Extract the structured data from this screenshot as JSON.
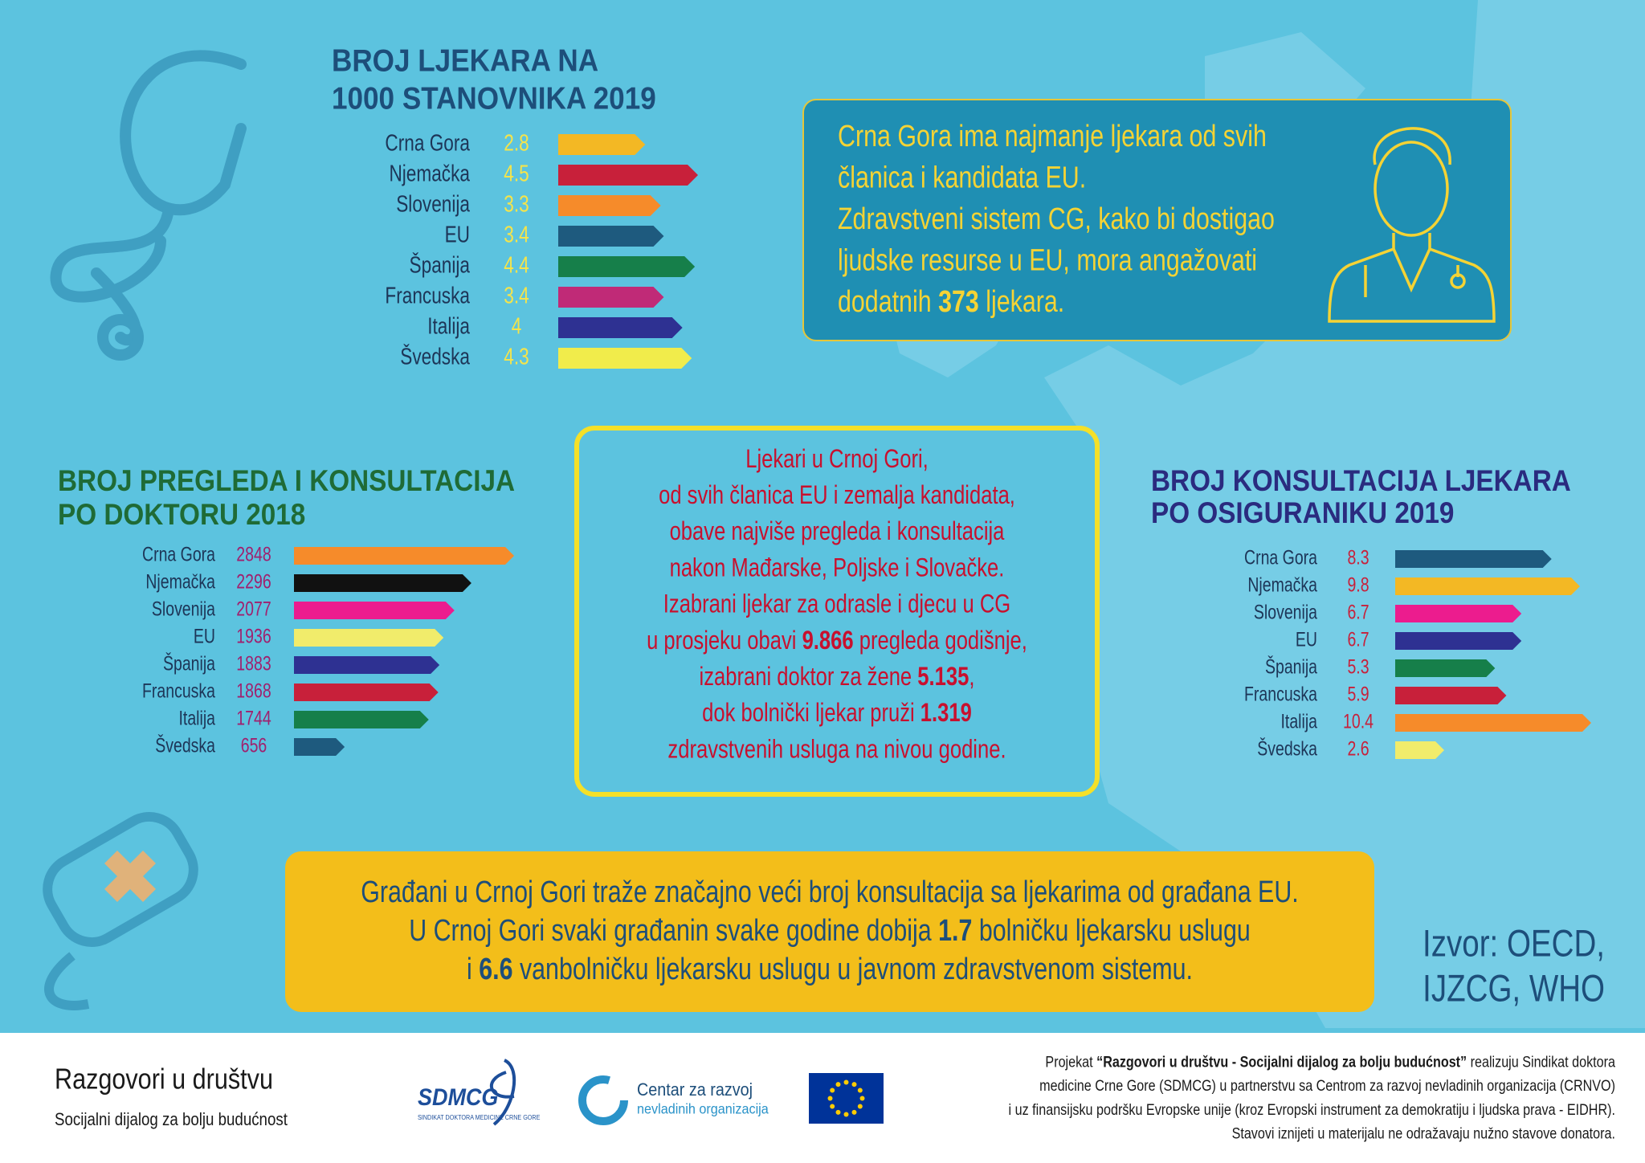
{
  "chart_data": [
    {
      "type": "bar",
      "orientation": "horizontal",
      "title": [
        "BROJ LJEKARA NA",
        "1000 STANOVNIKA 2019"
      ],
      "categories": [
        "Crna Gora",
        "Njemačka",
        "Slovenija",
        "EU",
        "Španija",
        "Francuska",
        "Italija",
        "Švedska"
      ],
      "values": [
        2.8,
        4.5,
        3.3,
        3.4,
        4.4,
        3.4,
        4,
        4.3
      ],
      "colors": [
        "#f3b824",
        "#c8203a",
        "#f68b2a",
        "#1e5a7e",
        "#167f4a",
        "#c02a77",
        "#2e3192",
        "#f1ec4b"
      ]
    },
    {
      "type": "bar",
      "orientation": "horizontal",
      "title": [
        "BROJ PREGLEDA I KONSULTACIJA",
        "PO DOKTORU 2018"
      ],
      "categories": [
        "Crna Gora",
        "Njemačka",
        "Slovenija",
        "EU",
        "Španija",
        "Francuska",
        "Italija",
        "Švedska"
      ],
      "values": [
        2848,
        2296,
        2077,
        1936,
        1883,
        1868,
        1744,
        656
      ],
      "colors": [
        "#f68b2a",
        "#111111",
        "#ec1c8e",
        "#f1ec6b",
        "#2e3192",
        "#c8203a",
        "#167f4a",
        "#1e5a7e"
      ]
    },
    {
      "type": "bar",
      "orientation": "horizontal",
      "title": [
        "BROJ KONSULTACIJA LJEKARA",
        "PO OSIGURANIKU 2019"
      ],
      "categories": [
        "Crna Gora",
        "Njemačka",
        "Slovenija",
        "EU",
        "Španija",
        "Francuska",
        "Italija",
        "Švedska"
      ],
      "values": [
        8.3,
        9.8,
        6.7,
        6.7,
        5.3,
        5.9,
        10.4,
        2.6
      ],
      "colors": [
        "#1e5a7e",
        "#f3b824",
        "#ec1c8e",
        "#2e3192",
        "#167f4a",
        "#c8203a",
        "#f68b2a",
        "#f1ec6b"
      ]
    }
  ],
  "info_box": {
    "lines": [
      [
        "Crna Gora ima najmanje ljekara od svih"
      ],
      [
        "članica i kandidata EU."
      ],
      [
        "Zdravstveni sistem CG, kako bi dostigao"
      ],
      [
        "ljudske resurse u EU, mora angažovati"
      ],
      [
        "dodatnih ",
        {
          "bold": "373"
        },
        " ljekara."
      ]
    ]
  },
  "center_box": {
    "lines": [
      [
        "Ljekari u Crnoj Gori,"
      ],
      [
        "od svih članica EU i zemalja kandidata,"
      ],
      [
        "obave najviše pregleda i konsultacija"
      ],
      [
        "nakon Mađarske, Poljske i Slovačke."
      ],
      [
        "Izabrani ljekar za odrasle i djecu u CG"
      ],
      [
        "u prosjeku obavi ",
        {
          "bold": "9.866"
        },
        " pregleda godišnje,"
      ],
      [
        "izabrani doktor za žene ",
        {
          "bold": "5.135"
        },
        ","
      ],
      [
        "dok bolnički ljekar pruži ",
        {
          "bold": "1.319"
        }
      ],
      [
        "zdravstvenih usluga na nivou godine."
      ]
    ]
  },
  "bottom_box": {
    "lines": [
      [
        "Građani u Crnoj Gori traže značajno veći broj konsultacija sa ljekarima od građana EU."
      ],
      [
        "U Crnoj Gori svaki građanin svake godine dobija ",
        {
          "bold": "1.7"
        },
        " bolničku ljekarsku uslugu"
      ],
      [
        "i ",
        {
          "bold": "6.6"
        },
        " vanbolničku ljekarsku uslugu u javnom zdravstvenom sistemu."
      ]
    ]
  },
  "source": [
    "Izvor: OECD,",
    "IJZCG, WHO"
  ],
  "footer": {
    "title": "Razgovori u društvu",
    "subtitle": "Socijalni dijalog za bolju budućnost",
    "sdmcg": "SDMCG",
    "sdmcg_sub": "SINDIKAT DOKTORA MEDICINE CRNE GORE",
    "crnvo": [
      "Centar za razvoj",
      "nevladinih organizacija"
    ],
    "lines": [
      [
        "Projekat ",
        {
          "bold": "“Razgovori u društvu - Socijalni dijalog za bolju budućnost”"
        },
        " realizuju Sindikat doktora"
      ],
      [
        "medicine Crne Gore (SDMCG) u partnerstvu sa Centrom za razvoj nevladinih organizacija (CRNVO)"
      ],
      [
        "i uz finansijsku podršku Evropske unije (kroz Evropski instrument za demokratiju i ljudska prava - EIDHR)."
      ],
      [
        "Stavovi iznijeti u materijalu ne odražavaju nužno stavove donatora."
      ]
    ]
  }
}
